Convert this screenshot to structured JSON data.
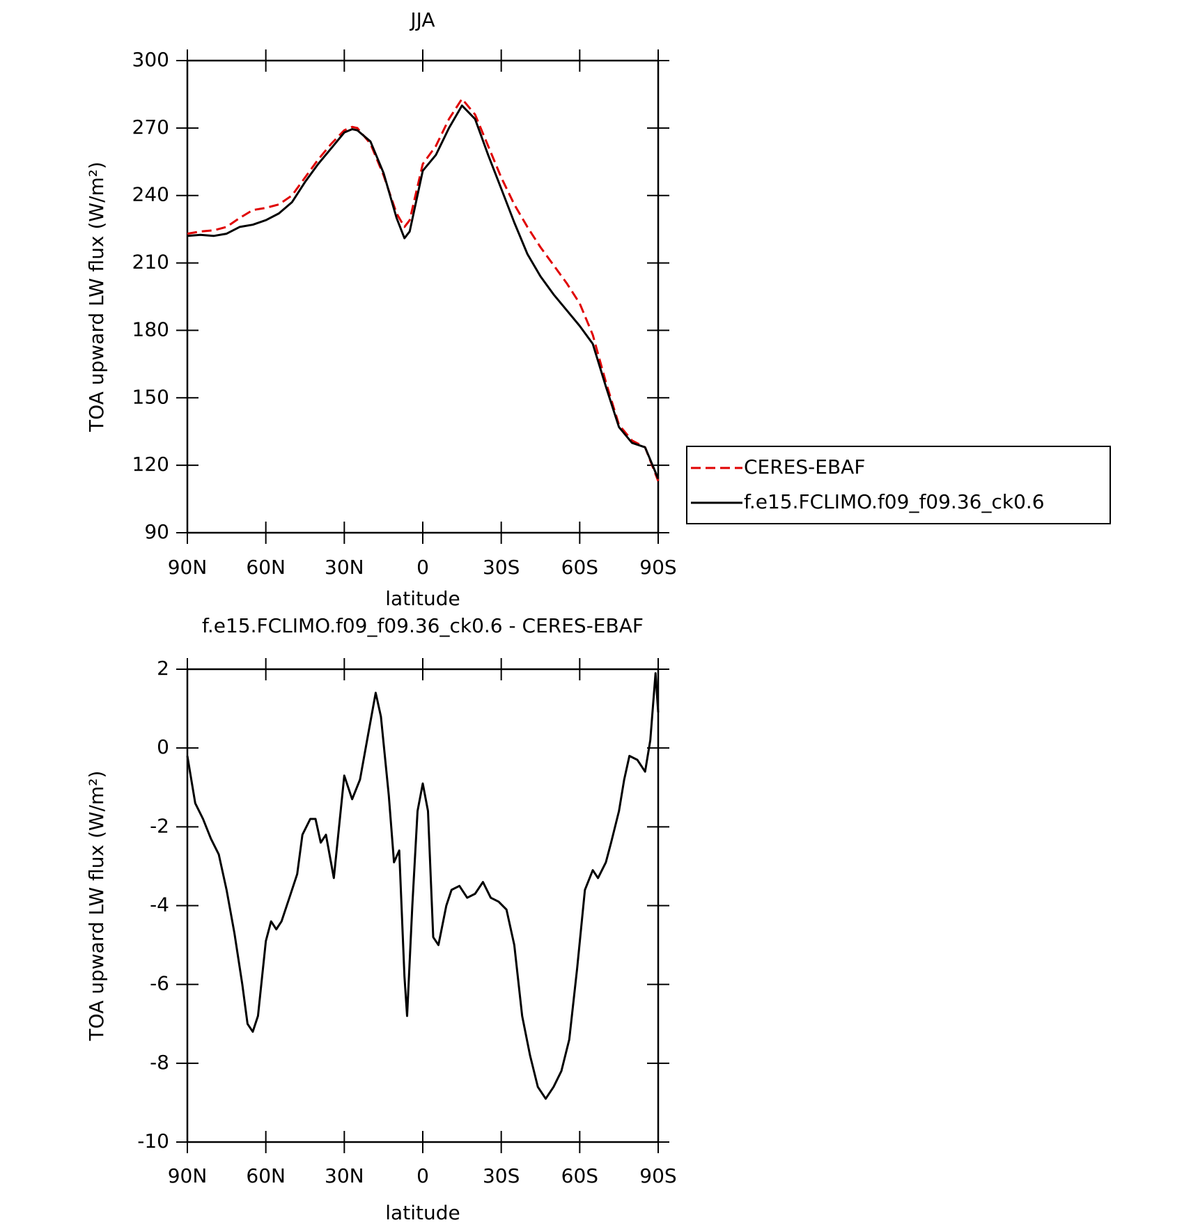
{
  "chart_data": [
    {
      "type": "line",
      "title": "JJA",
      "xlabel": "latitude",
      "ylabel": "TOA upward LW flux (W/m²)",
      "xlim": [
        90,
        -90
      ],
      "xticks": [
        {
          "value": 90,
          "label": "90N"
        },
        {
          "value": 60,
          "label": "60N"
        },
        {
          "value": 30,
          "label": "30N"
        },
        0,
        {
          "value": -30,
          "label": "30S"
        },
        {
          "value": -60,
          "label": "60S"
        },
        {
          "value": -90,
          "label": "90S"
        }
      ],
      "ylim": [
        90,
        300
      ],
      "yticks": [
        90,
        120,
        150,
        180,
        210,
        240,
        270,
        300
      ],
      "legend": "outside-right",
      "x": [
        90,
        85,
        80,
        75,
        70,
        65,
        60,
        55,
        50,
        45,
        40,
        35,
        30,
        27,
        25,
        20,
        15,
        10,
        7,
        5,
        0,
        -5,
        -10,
        -15,
        -20,
        -25,
        -30,
        -35,
        -40,
        -45,
        -50,
        -55,
        -60,
        -65,
        -70,
        -75,
        -80,
        -85,
        -90
      ],
      "series": [
        {
          "name": "CERES-EBAF",
          "color": "#e00000",
          "dashed": true,
          "values": [
            223,
            224,
            224.5,
            226,
            230,
            233.5,
            234.5,
            236,
            240,
            248,
            256,
            263,
            269,
            270.5,
            270,
            263,
            249,
            232,
            226,
            229,
            254,
            262,
            274,
            283,
            276,
            262,
            248,
            236,
            226,
            217,
            209,
            201,
            192,
            178,
            157,
            138,
            131,
            128,
            113
          ]
        },
        {
          "name": "f.e15.FCLIMO.f09_f09.36_ck0.6",
          "color": "#000000",
          "dashed": false,
          "values": [
            222,
            222.5,
            222,
            223,
            226,
            227,
            229,
            232,
            237,
            246,
            254,
            261,
            268,
            269.5,
            269,
            264,
            250,
            230,
            221,
            224,
            251,
            258,
            270,
            280,
            274,
            258,
            243,
            228,
            214,
            204,
            196,
            189,
            182,
            174,
            155,
            137,
            130,
            128,
            114
          ]
        }
      ]
    },
    {
      "type": "line",
      "title": "f.e15.FCLIMO.f09_f09.36_ck0.6 - CERES-EBAF",
      "xlabel": "latitude",
      "ylabel": "TOA upward LW flux (W/m²)",
      "xlim": [
        90,
        -90
      ],
      "xticks": [
        {
          "value": 90,
          "label": "90N"
        },
        {
          "value": 60,
          "label": "60N"
        },
        {
          "value": 30,
          "label": "30N"
        },
        0,
        {
          "value": -30,
          "label": "30S"
        },
        {
          "value": -60,
          "label": "60S"
        },
        {
          "value": -90,
          "label": "90S"
        }
      ],
      "ylim": [
        -10,
        2
      ],
      "yticks": [
        -10,
        -8,
        -6,
        -4,
        -2,
        0,
        2
      ],
      "x": [
        90,
        87,
        84,
        81,
        78,
        75,
        72,
        69,
        67,
        65,
        63,
        60,
        58,
        56,
        54,
        51,
        48,
        46,
        43,
        41,
        39,
        37,
        34,
        32,
        30,
        27,
        24,
        21,
        18,
        16,
        13,
        11,
        9,
        7,
        6,
        4,
        2,
        0,
        -2,
        -4,
        -6,
        -9,
        -11,
        -14,
        -17,
        -20,
        -23,
        -26,
        -29,
        -32,
        -35,
        -38,
        -41,
        -44,
        -47,
        -50,
        -53,
        -56,
        -59,
        -62,
        -65,
        -67,
        -70,
        -72,
        -75,
        -77,
        -79,
        -82,
        -85,
        -87,
        -89,
        -90
      ],
      "series": [
        {
          "color": "#000000",
          "dashed": false,
          "values": [
            -0.2,
            -1.4,
            -1.8,
            -2.3,
            -2.7,
            -3.6,
            -4.7,
            -6.0,
            -7.0,
            -7.2,
            -6.8,
            -4.9,
            -4.4,
            -4.6,
            -4.4,
            -3.8,
            -3.2,
            -2.2,
            -1.8,
            -1.8,
            -2.4,
            -2.2,
            -3.3,
            -2.0,
            -0.7,
            -1.3,
            -0.8,
            0.3,
            1.4,
            0.8,
            -1.2,
            -2.9,
            -2.6,
            -5.8,
            -6.8,
            -4.0,
            -1.6,
            -0.9,
            -1.6,
            -4.8,
            -5.0,
            -4.0,
            -3.6,
            -3.5,
            -3.8,
            -3.7,
            -3.4,
            -3.8,
            -3.9,
            -4.1,
            -5.0,
            -6.8,
            -7.8,
            -8.6,
            -8.9,
            -8.6,
            -8.2,
            -7.4,
            -5.6,
            -3.6,
            -3.1,
            -3.3,
            -2.9,
            -2.4,
            -1.6,
            -0.8,
            -0.2,
            -0.3,
            -0.6,
            0.2,
            1.9,
            0.9
          ]
        }
      ]
    }
  ]
}
